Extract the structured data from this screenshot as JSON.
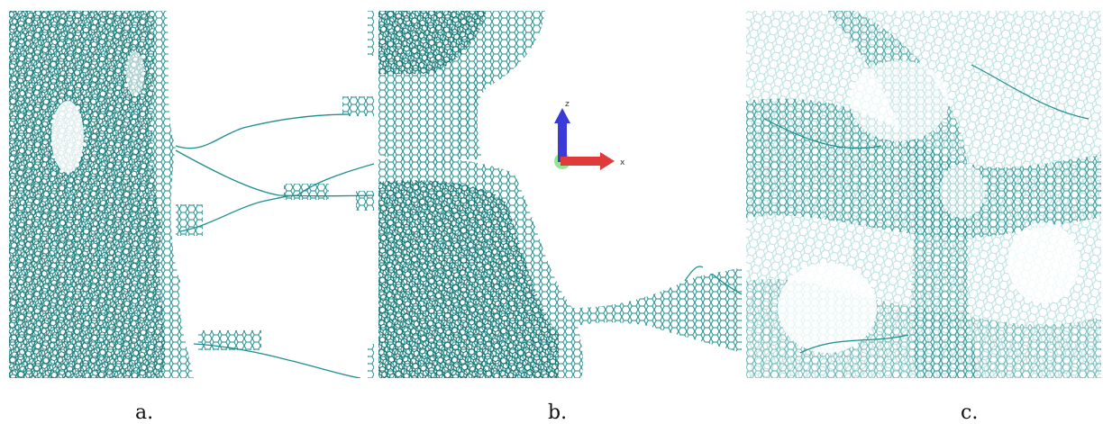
{
  "panels": [
    {
      "label": "a."
    },
    {
      "label": "b."
    },
    {
      "label": "c."
    }
  ],
  "axes": {
    "z_label": "z",
    "x_label": "x"
  },
  "colors": {
    "mesh": "#1e8e8e",
    "mesh_dark": "#0e6b6b",
    "mesh_light": "#7cc5c5",
    "axis_z": "#3a3ad8",
    "axis_x": "#e03b3b",
    "axis_origin": "#7be07b"
  }
}
